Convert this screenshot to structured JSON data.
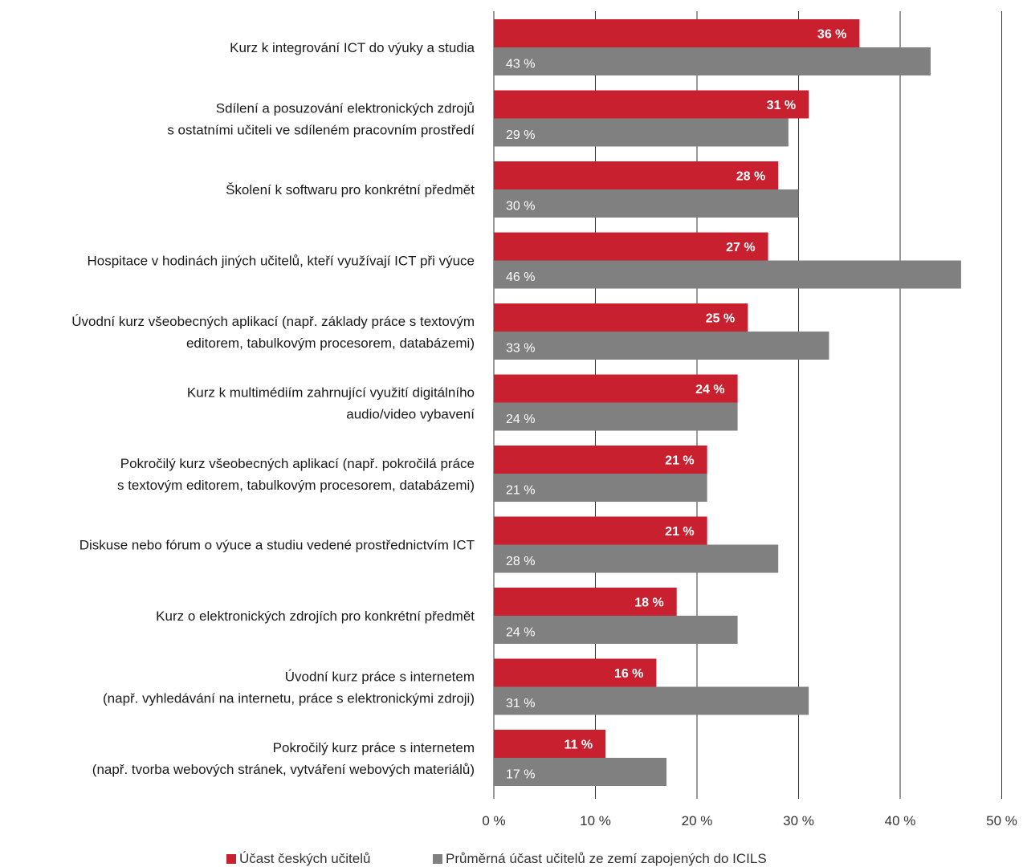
{
  "chart_data": {
    "type": "bar",
    "orientation": "horizontal",
    "categories": [
      [
        "Kurz k integrování ICT do výuky a studia"
      ],
      [
        "Sdílení a posuzování elektronických zdrojů",
        "s ostatními učiteli ve sdíleném pracovním prostředí"
      ],
      [
        "Školení k softwaru pro konkrétní předmět"
      ],
      [
        "Hospitace v hodinách jiných učitelů, kteří využívají ICT při výuce"
      ],
      [
        "Úvodní kurz všeobecných aplikací (např. základy práce s textovým",
        "editorem, tabulkovým procesorem, databázemi)"
      ],
      [
        "Kurz k multimédiím zahrnující využití digitálního",
        "audio/video vybavení"
      ],
      [
        "Pokročilý kurz všeobecných aplikací (např. pokročilá práce",
        "s textovým editorem, tabulkovým procesorem, databázemi)"
      ],
      [
        "Diskuse nebo fórum o výuce a studiu vedené prostřednictvím ICT"
      ],
      [
        "Kurz o elektronických zdrojích pro konkrétní předmět"
      ],
      [
        "Úvodní kurz práce s internetem",
        "(např. vyhledávání na internetu, práce s elektronickými zdroji)"
      ],
      [
        "Pokročilý kurz práce s internetem",
        "(např. tvorba webových stránek, vytváření webových materiálů)"
      ]
    ],
    "series": [
      {
        "name": "Účast českých učitelů",
        "color": "#c8202f",
        "values": [
          36,
          31,
          28,
          27,
          25,
          24,
          21,
          21,
          18,
          16,
          11
        ],
        "labels": [
          "36 %",
          "31 %",
          "28 %",
          "27 %",
          "25 %",
          "24 %",
          "21 %",
          "21 %",
          "18 %",
          "16 %",
          "11 %"
        ]
      },
      {
        "name": "Průměrná účast učitelů ze zemí zapojených do ICILS",
        "color": "#808080",
        "values": [
          43,
          29,
          30,
          46,
          33,
          24,
          21,
          28,
          24,
          31,
          17
        ],
        "labels": [
          "43 %",
          "29 %",
          "30 %",
          "46 %",
          "33 %",
          "24 %",
          "21 %",
          "28 %",
          "24 %",
          "31 %",
          "17 %"
        ]
      }
    ],
    "x_ticks": [
      "0 %",
      "10 %",
      "20 %",
      "30 %",
      "40 %",
      "50 %"
    ],
    "xlim": [
      0,
      50
    ],
    "grid": true,
    "legend_position": "bottom"
  }
}
